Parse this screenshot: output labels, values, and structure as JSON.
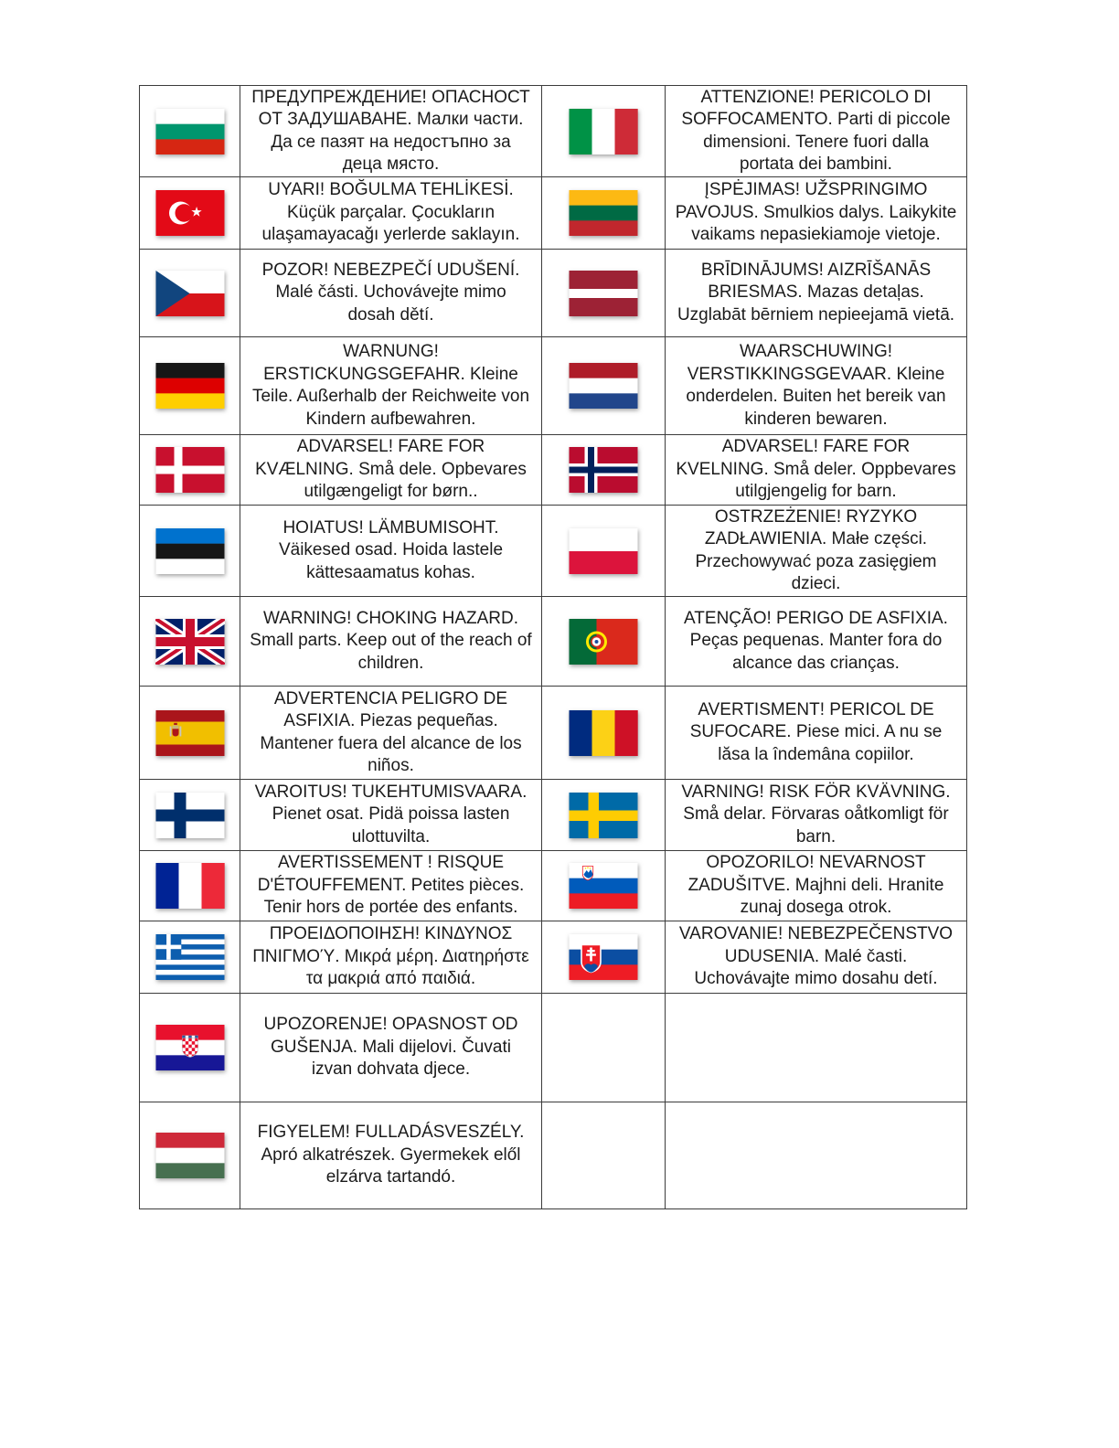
{
  "page": {
    "background": "#ffffff",
    "text_color": "#1b1b1b",
    "table_border_color": "#3c3c3c"
  },
  "table": {
    "rows": [
      {
        "left": {
          "flag": "bulgaria",
          "lang": "bulgarian",
          "text": "ПРЕДУПРЕЖДЕНИЕ! ОПАСНОСТ ОТ ЗАДУШАВАНЕ. Малки части. Да се пазят на недостъпно за деца място."
        },
        "right": {
          "flag": "italy",
          "lang": "italian",
          "text": "ATTENZIONE! PERICOLO DI SOFFOCAMENTO. Parti di piccole dimensioni. Tenere fuori dalla portata dei bambini."
        }
      },
      {
        "left": {
          "flag": "turkey",
          "lang": "turkish",
          "text": "UYARI! BOĞULMA TEHLİKESİ. Küçük parçalar. Çocukların ulaşamayacağı yerlerde saklayın."
        },
        "right": {
          "flag": "lithuania",
          "lang": "lithuanian",
          "text": "ĮSPĖJIMAS! UŽSPRINGIMO PAVOJUS. Smulkios dalys. Laikykite vaikams nepasiekiamoje vietoje."
        }
      },
      {
        "left": {
          "flag": "czechia",
          "lang": "czech",
          "text": "POZOR! NEBEZPEČÍ UDUŠENÍ. Malé části. Uchovávejte mimo dosah dětí."
        },
        "right": {
          "flag": "latvia",
          "lang": "latvian",
          "text": "BRĪDINĀJUMS! AIZRĪŠANĀS BRIESMAS. Mazas detaļas. Uzglabāt bērniem nepieejamā vietā."
        }
      },
      {
        "left": {
          "flag": "germany",
          "lang": "german",
          "text": "WARNUNG! ERSTICKUNGSGEFAHR. Kleine Teile. Außerhalb der Reichweite von Kindern aufbewahren."
        },
        "right": {
          "flag": "netherlands",
          "lang": "dutch",
          "text": "WAARSCHUWING! VERSTIKKINGSGEVAAR. Kleine onderdelen. Buiten het bereik van kinderen bewaren."
        }
      },
      {
        "left": {
          "flag": "denmark",
          "lang": "danish",
          "text": "ADVARSEL! FARE FOR KVÆLNING. Små dele. Opbevares utilgængeligt for børn.."
        },
        "right": {
          "flag": "norway",
          "lang": "norwegian",
          "text": "ADVARSEL! FARE FOR KVELNING. Små deler. Oppbevares utilgjengelig for barn."
        }
      },
      {
        "left": {
          "flag": "estonia",
          "lang": "estonian",
          "text": "HOIATUS! LÄMBUMISOHT. Väikesed osad. Hoida lastele kättesaamatus kohas."
        },
        "right": {
          "flag": "poland",
          "lang": "polish",
          "text": "OSTRZEŻENIE! RYZYKO ZADŁAWIENIA. Małe części. Przechowywać poza zasięgiem dzieci."
        }
      },
      {
        "left": {
          "flag": "united-kingdom",
          "lang": "english",
          "text": "WARNING! CHOKING HAZARD. Small parts. Keep out of the reach of children."
        },
        "right": {
          "flag": "portugal",
          "lang": "portuguese",
          "text": "ATENÇÃO! PERIGO DE ASFIXIA. Peças pequenas. Manter fora do alcance das crianças."
        }
      },
      {
        "left": {
          "flag": "spain",
          "lang": "spanish",
          "text": "ADVERTENCIA PELIGRO DE ASFIXIA. Piezas pequeñas. Mantener fuera del alcance de los niños."
        },
        "right": {
          "flag": "romania",
          "lang": "romanian",
          "text": "AVERTISMENT! PERICOL DE SUFOCARE. Piese mici. A nu se lăsa la îndemâna copiilor."
        }
      },
      {
        "left": {
          "flag": "finland",
          "lang": "finnish",
          "text": "VAROITUS! TUKEHTUMISVAARA. Pienet osat. Pidä poissa lasten ulottuvilta."
        },
        "right": {
          "flag": "sweden",
          "lang": "swedish",
          "text": "VARNING! RISK FÖR KVÄVNING. Små delar. Förvaras oåtkomligt för barn."
        }
      },
      {
        "left": {
          "flag": "france",
          "lang": "french",
          "text": "AVERTISSEMENT ! RISQUE D'ÉTOUFFEMENT. Petites pièces. Tenir hors de portée des enfants."
        },
        "right": {
          "flag": "slovenia",
          "lang": "slovenian",
          "text": "OPOZORILO! NEVARNOST ZADUŠITVE. Majhni deli. Hranite zunaj dosega otrok."
        }
      },
      {
        "left": {
          "flag": "greece",
          "lang": "greek",
          "text": "ΠΡΟΕΙΔΟΠΟΙΗΣΗ! ΚΙΝΔΥΝΟΣ ΠΝΙΓΜΟΎ. Μικρά μέρη. Διατηρήστε τα μακριά από παιδιά."
        },
        "right": {
          "flag": "slovakia",
          "lang": "slovak",
          "text": "VAROVANIE! NEBEZPEČENSTVO UDUSENIA. Malé časti. Uchovávajte mimo dosahu detí."
        }
      },
      {
        "left": {
          "flag": "croatia",
          "lang": "croatian",
          "text": "UPOZORENJE! OPASNOST OD GUŠENJA. Mali dijelovi. Čuvati izvan dohvata djece."
        },
        "right": null
      },
      {
        "left": {
          "flag": "hungary",
          "lang": "hungarian",
          "text": "FIGYELEM! FULLADÁSVESZÉLY. Apró alkatrészek. Gyermekek elől elzárva tartandó."
        },
        "right": null
      }
    ]
  }
}
